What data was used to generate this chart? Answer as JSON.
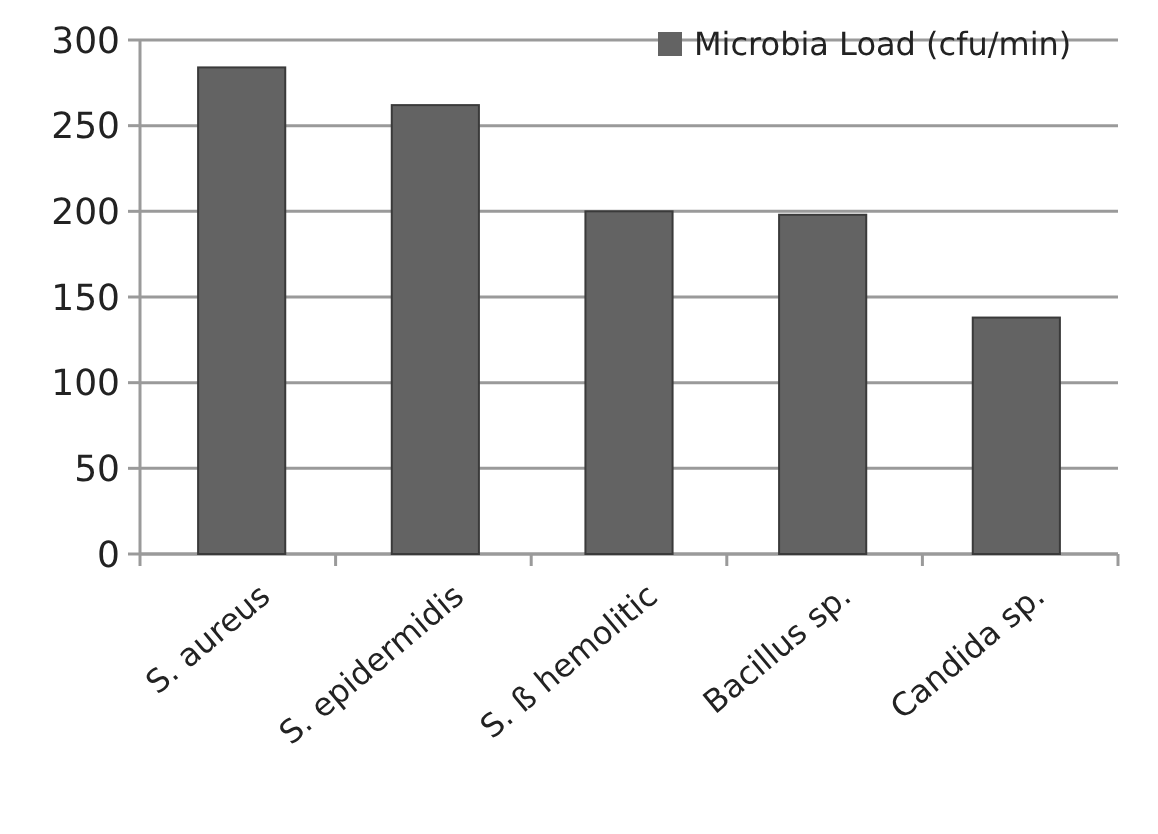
{
  "chart_data": {
    "type": "bar",
    "categories": [
      "S. aureus",
      "S. epidermidis",
      "S. ß hemolitic",
      "Bacillus sp.",
      "Candida sp."
    ],
    "series": [
      {
        "name": "Microbia Load (cfu/min)",
        "color": "#636363",
        "values": [
          284,
          262,
          200,
          198,
          138
        ]
      }
    ],
    "ylim": [
      0,
      300
    ],
    "yticks": [
      0,
      50,
      100,
      150,
      200,
      250,
      300
    ],
    "grid": "y",
    "legend": "top right"
  }
}
